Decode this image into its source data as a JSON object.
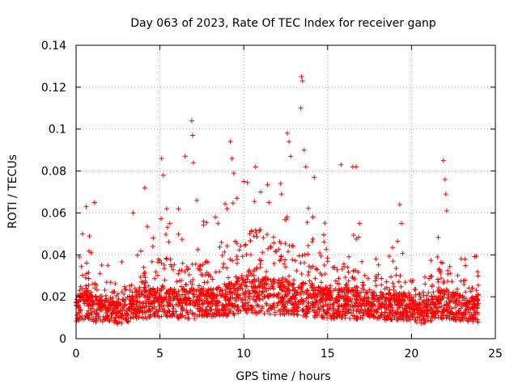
{
  "chart_data": {
    "type": "scatter",
    "title": "Day 063 of 2023, Rate Of TEC Index for receiver ganp",
    "xlabel": "GPS time / hours",
    "ylabel": "ROTI / TECUs",
    "xlim": [
      0,
      25
    ],
    "ylim": [
      0,
      0.14
    ],
    "xticks": [
      "0",
      "5",
      "10",
      "15",
      "20",
      "25"
    ],
    "yticks": [
      "0",
      "0.02",
      "0.04",
      "0.06",
      "0.08",
      "0.1",
      "0.12",
      "0.14"
    ],
    "grid": true,
    "marker": "+",
    "color": "#ff0000",
    "series": [
      {
        "name": "ROTI",
        "density_profile": [
          {
            "x": 0.0,
            "typical": 0.014,
            "upper": 0.03
          },
          {
            "x": 0.5,
            "typical": 0.015,
            "upper": 0.035
          },
          {
            "x": 1.0,
            "typical": 0.014,
            "upper": 0.03
          },
          {
            "x": 1.5,
            "typical": 0.013,
            "upper": 0.026
          },
          {
            "x": 2.0,
            "typical": 0.012,
            "upper": 0.022
          },
          {
            "x": 2.5,
            "typical": 0.012,
            "upper": 0.022
          },
          {
            "x": 3.0,
            "typical": 0.013,
            "upper": 0.025
          },
          {
            "x": 3.5,
            "typical": 0.015,
            "upper": 0.03
          },
          {
            "x": 4.0,
            "typical": 0.016,
            "upper": 0.035
          },
          {
            "x": 4.5,
            "typical": 0.016,
            "upper": 0.035
          },
          {
            "x": 5.0,
            "typical": 0.017,
            "upper": 0.038
          },
          {
            "x": 6.0,
            "typical": 0.016,
            "upper": 0.035
          },
          {
            "x": 7.0,
            "typical": 0.016,
            "upper": 0.035
          },
          {
            "x": 8.0,
            "typical": 0.016,
            "upper": 0.036
          },
          {
            "x": 9.0,
            "typical": 0.018,
            "upper": 0.042
          },
          {
            "x": 10.0,
            "typical": 0.02,
            "upper": 0.05
          },
          {
            "x": 11.0,
            "typical": 0.02,
            "upper": 0.05
          },
          {
            "x": 12.0,
            "typical": 0.019,
            "upper": 0.045
          },
          {
            "x": 13.0,
            "typical": 0.019,
            "upper": 0.045
          },
          {
            "x": 14.0,
            "typical": 0.017,
            "upper": 0.038
          },
          {
            "x": 15.0,
            "typical": 0.016,
            "upper": 0.034
          },
          {
            "x": 16.0,
            "typical": 0.016,
            "upper": 0.033
          },
          {
            "x": 17.0,
            "typical": 0.015,
            "upper": 0.03
          },
          {
            "x": 18.0,
            "typical": 0.015,
            "upper": 0.03
          },
          {
            "x": 19.0,
            "typical": 0.015,
            "upper": 0.03
          },
          {
            "x": 20.0,
            "typical": 0.014,
            "upper": 0.028
          },
          {
            "x": 20.5,
            "typical": 0.012,
            "upper": 0.02
          },
          {
            "x": 21.0,
            "typical": 0.013,
            "upper": 0.028
          },
          {
            "x": 22.0,
            "typical": 0.016,
            "upper": 0.035
          },
          {
            "x": 23.0,
            "typical": 0.014,
            "upper": 0.028
          },
          {
            "x": 24.0,
            "typical": 0.013,
            "upper": 0.025
          }
        ],
        "outliers": [
          {
            "x": 0.2,
            "y": 0.039
          },
          {
            "x": 0.6,
            "y": 0.063
          },
          {
            "x": 0.8,
            "y": 0.049
          },
          {
            "x": 0.9,
            "y": 0.041
          },
          {
            "x": 1.1,
            "y": 0.065
          },
          {
            "x": 1.9,
            "y": 0.035
          },
          {
            "x": 3.4,
            "y": 0.06
          },
          {
            "x": 4.1,
            "y": 0.072
          },
          {
            "x": 4.6,
            "y": 0.048
          },
          {
            "x": 5.1,
            "y": 0.086
          },
          {
            "x": 5.2,
            "y": 0.078
          },
          {
            "x": 5.4,
            "y": 0.062
          },
          {
            "x": 6.1,
            "y": 0.062
          },
          {
            "x": 6.5,
            "y": 0.087
          },
          {
            "x": 6.9,
            "y": 0.104
          },
          {
            "x": 6.95,
            "y": 0.097
          },
          {
            "x": 7.0,
            "y": 0.084
          },
          {
            "x": 7.2,
            "y": 0.066
          },
          {
            "x": 7.6,
            "y": 0.056
          },
          {
            "x": 8.3,
            "y": 0.058
          },
          {
            "x": 9.0,
            "y": 0.062
          },
          {
            "x": 9.2,
            "y": 0.094
          },
          {
            "x": 9.3,
            "y": 0.086
          },
          {
            "x": 9.4,
            "y": 0.079
          },
          {
            "x": 9.6,
            "y": 0.067
          },
          {
            "x": 10.0,
            "y": 0.075
          },
          {
            "x": 10.7,
            "y": 0.082
          },
          {
            "x": 11.0,
            "y": 0.07
          },
          {
            "x": 11.5,
            "y": 0.065
          },
          {
            "x": 12.2,
            "y": 0.074
          },
          {
            "x": 12.6,
            "y": 0.098
          },
          {
            "x": 12.7,
            "y": 0.094
          },
          {
            "x": 12.8,
            "y": 0.087
          },
          {
            "x": 13.4,
            "y": 0.11
          },
          {
            "x": 13.45,
            "y": 0.125
          },
          {
            "x": 13.5,
            "y": 0.123
          },
          {
            "x": 13.6,
            "y": 0.09
          },
          {
            "x": 13.7,
            "y": 0.082
          },
          {
            "x": 14.2,
            "y": 0.077
          },
          {
            "x": 15.8,
            "y": 0.083
          },
          {
            "x": 16.5,
            "y": 0.082
          },
          {
            "x": 16.7,
            "y": 0.082
          },
          {
            "x": 16.9,
            "y": 0.055
          },
          {
            "x": 19.3,
            "y": 0.064
          },
          {
            "x": 19.4,
            "y": 0.055
          },
          {
            "x": 21.9,
            "y": 0.085
          },
          {
            "x": 22.0,
            "y": 0.076
          },
          {
            "x": 22.05,
            "y": 0.069
          },
          {
            "x": 22.1,
            "y": 0.061
          },
          {
            "x": 23.2,
            "y": 0.038
          }
        ]
      }
    ]
  }
}
